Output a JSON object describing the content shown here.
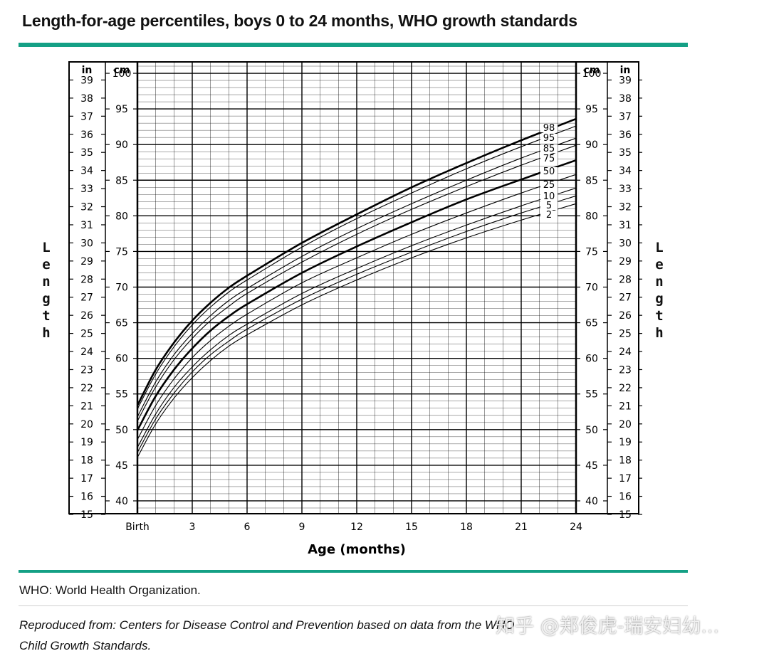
{
  "header": {
    "title": "Length-for-age percentiles, boys 0 to 24 months, WHO growth standards"
  },
  "footer": {
    "abbreviation": "WHO: World Health Organization.",
    "source": "Reproduced from: Centers for Disease Control and Prevention based on data from the WHO Child Growth Standards.",
    "watermark": "知乎 @郑俊虎-瑞安妇幼..."
  },
  "colors": {
    "accent": "#14a085",
    "grid": "#000000"
  },
  "chart_data": {
    "type": "line",
    "xlabel": "Age (months)",
    "ylabel": "Length",
    "y_units_left_outer": "in",
    "y_units_left_inner": "cm",
    "y_units_right_inner": "cm",
    "y_units_right_outer": "in",
    "x_ticks": [
      {
        "value": 0,
        "label": "Birth"
      },
      {
        "value": 3,
        "label": "3"
      },
      {
        "value": 6,
        "label": "6"
      },
      {
        "value": 9,
        "label": "9"
      },
      {
        "value": 12,
        "label": "12"
      },
      {
        "value": 15,
        "label": "15"
      },
      {
        "value": 18,
        "label": "18"
      },
      {
        "value": 21,
        "label": "21"
      },
      {
        "value": 24,
        "label": "24"
      }
    ],
    "xlim": [
      0,
      24
    ],
    "ylim_cm": [
      38.2,
      101.6
    ],
    "cm_ticks": [
      40,
      45,
      50,
      55,
      60,
      65,
      70,
      75,
      80,
      85,
      90,
      95,
      100
    ],
    "in_ticks": [
      15,
      16,
      17,
      18,
      19,
      20,
      21,
      22,
      23,
      24,
      25,
      26,
      27,
      28,
      29,
      30,
      31,
      32,
      33,
      34,
      35,
      36,
      37,
      38,
      39
    ],
    "grid": true,
    "x": [
      0,
      1,
      2,
      3,
      4,
      5,
      6,
      9,
      12,
      15,
      18,
      21,
      24
    ],
    "series": [
      {
        "name": "2",
        "bold": false,
        "values": [
          46.1,
          50.8,
          54.4,
          57.3,
          59.7,
          61.7,
          63.3,
          67.5,
          71.0,
          74.1,
          76.9,
          79.4,
          81.7
        ]
      },
      {
        "name": "5",
        "bold": false,
        "values": [
          46.8,
          51.5,
          55.1,
          58.1,
          60.5,
          62.4,
          64.1,
          68.3,
          71.8,
          74.9,
          77.8,
          80.4,
          82.8
        ]
      },
      {
        "name": "10",
        "bold": false,
        "values": [
          47.5,
          52.2,
          55.9,
          58.8,
          61.2,
          63.2,
          64.8,
          69.1,
          72.6,
          75.8,
          78.7,
          81.4,
          83.9
        ]
      },
      {
        "name": "25",
        "bold": false,
        "values": [
          48.6,
          53.4,
          57.1,
          60.1,
          62.5,
          64.5,
          66.2,
          70.6,
          74.1,
          77.4,
          80.4,
          83.2,
          85.8
        ]
      },
      {
        "name": "50",
        "bold": true,
        "values": [
          49.9,
          54.7,
          58.4,
          61.4,
          63.9,
          65.9,
          67.6,
          72.0,
          75.7,
          79.1,
          82.3,
          85.1,
          87.8
        ]
      },
      {
        "name": "75",
        "bold": false,
        "values": [
          51.2,
          56.0,
          59.8,
          62.8,
          65.3,
          67.3,
          69.1,
          73.5,
          77.4,
          80.9,
          84.1,
          87.1,
          89.9
        ]
      },
      {
        "name": "85",
        "bold": false,
        "values": [
          51.8,
          56.7,
          60.5,
          63.5,
          66.0,
          68.1,
          69.8,
          74.3,
          78.2,
          81.7,
          85.0,
          88.1,
          90.9
        ]
      },
      {
        "name": "95",
        "bold": false,
        "values": [
          52.9,
          57.8,
          61.6,
          64.7,
          67.2,
          69.3,
          71.0,
          75.6,
          79.6,
          83.2,
          86.6,
          89.7,
          92.6
        ]
      },
      {
        "name": "98",
        "bold": true,
        "values": [
          53.4,
          58.4,
          62.2,
          65.3,
          67.8,
          69.9,
          71.6,
          76.2,
          80.2,
          84.0,
          87.4,
          90.6,
          93.6
        ]
      }
    ]
  }
}
